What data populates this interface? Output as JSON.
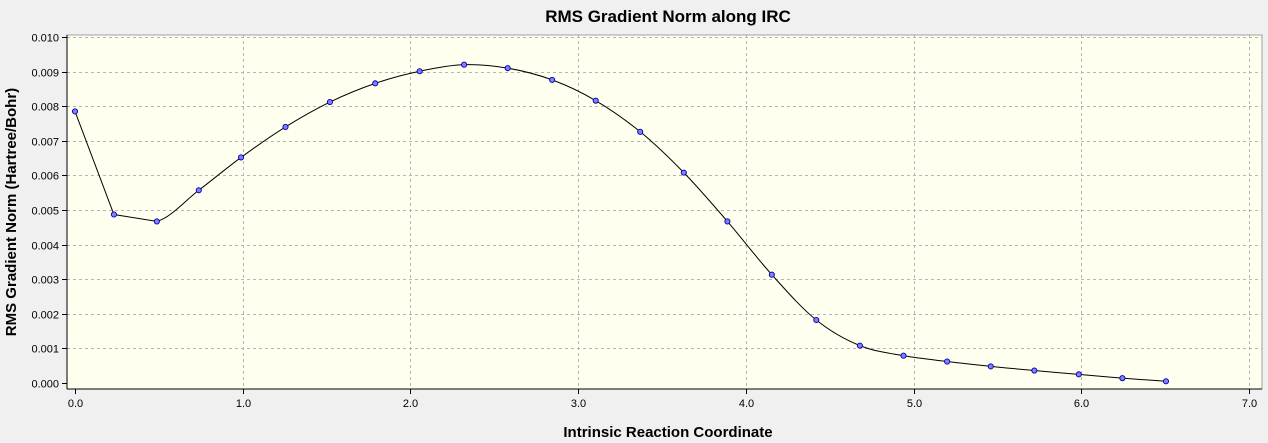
{
  "chart_data": {
    "type": "line",
    "title": "RMS Gradient Norm along IRC",
    "xlabel": "Intrinsic Reaction Coordinate",
    "ylabel": "RMS Gradient Norm (Hartree/Bohr)",
    "xlim": [
      0.0,
      7.0
    ],
    "ylim": [
      0.0,
      0.01
    ],
    "xticks": [
      "0.0",
      "1.0",
      "2.0",
      "3.0",
      "4.0",
      "5.0",
      "6.0",
      "7.0"
    ],
    "yticks": [
      "0.000",
      "0.001",
      "0.002",
      "0.003",
      "0.004",
      "0.005",
      "0.006",
      "0.007",
      "0.008",
      "0.009",
      "0.010"
    ],
    "grid": true,
    "legend": "none",
    "colors": {
      "plot_bg": "#ffffef",
      "page_bg": "#f0f0f0",
      "grid": "#b4b4b4",
      "line": "#000000",
      "marker_fill": "#8080ff",
      "marker_stroke": "#0000a0"
    },
    "series": [
      {
        "x": [
          0.0,
          0.232,
          0.488,
          0.738,
          0.99,
          1.255,
          1.52,
          1.79,
          2.055,
          2.32,
          2.58,
          2.845,
          3.105,
          3.37,
          3.63,
          3.89,
          4.155,
          4.42,
          4.68,
          4.94,
          5.2,
          5.46,
          5.72,
          5.985,
          6.245,
          6.505
        ],
        "y": [
          0.00785,
          0.00487,
          0.00467,
          0.00557,
          0.00652,
          0.0074,
          0.00812,
          0.00866,
          0.00901,
          0.0092,
          0.0091,
          0.00876,
          0.00816,
          0.00726,
          0.00608,
          0.00467,
          0.00313,
          0.00182,
          0.00108,
          0.00079,
          0.00062,
          0.00048,
          0.00036,
          0.00025,
          0.00014,
          5e-05
        ]
      }
    ]
  }
}
